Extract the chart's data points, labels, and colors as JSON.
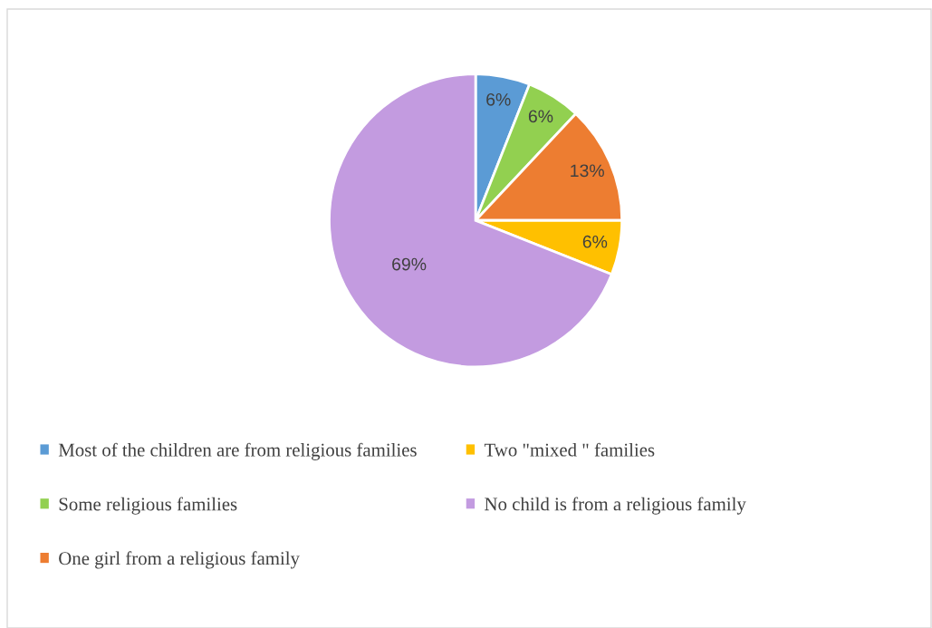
{
  "chart_data": {
    "type": "pie",
    "categories": [
      "Most of the children are from religious families",
      "Some religious families",
      "One girl from a religious family",
      "Two \"mixed \" families",
      "No child is from a religious family"
    ],
    "values": [
      6,
      6,
      13,
      6,
      69
    ],
    "colors": [
      "#5b9bd5",
      "#92d050",
      "#ed7d31",
      "#ffc000",
      "#c39be0"
    ],
    "value_labels": [
      "6%",
      "6%",
      "13%",
      "6%",
      "69%"
    ],
    "legend": "bottom"
  }
}
